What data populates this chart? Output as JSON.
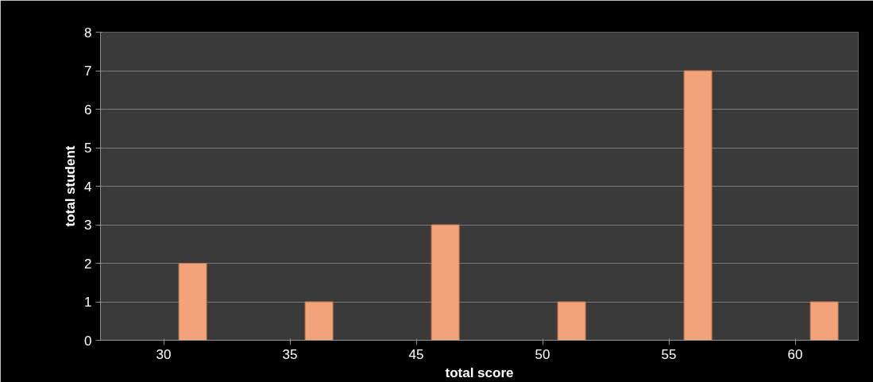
{
  "chart_data": {
    "type": "bar",
    "xlabel": "total score",
    "ylabel": "total student",
    "categories": [
      "30",
      "35",
      "45",
      "50",
      "55",
      "60"
    ],
    "values": [
      2,
      1,
      3,
      1,
      7,
      1
    ],
    "color": "#f2a37a",
    "ylim": [
      0,
      8
    ],
    "yticks": [
      0,
      1,
      2,
      3,
      4,
      5,
      6,
      7,
      8
    ],
    "grid": "y"
  }
}
